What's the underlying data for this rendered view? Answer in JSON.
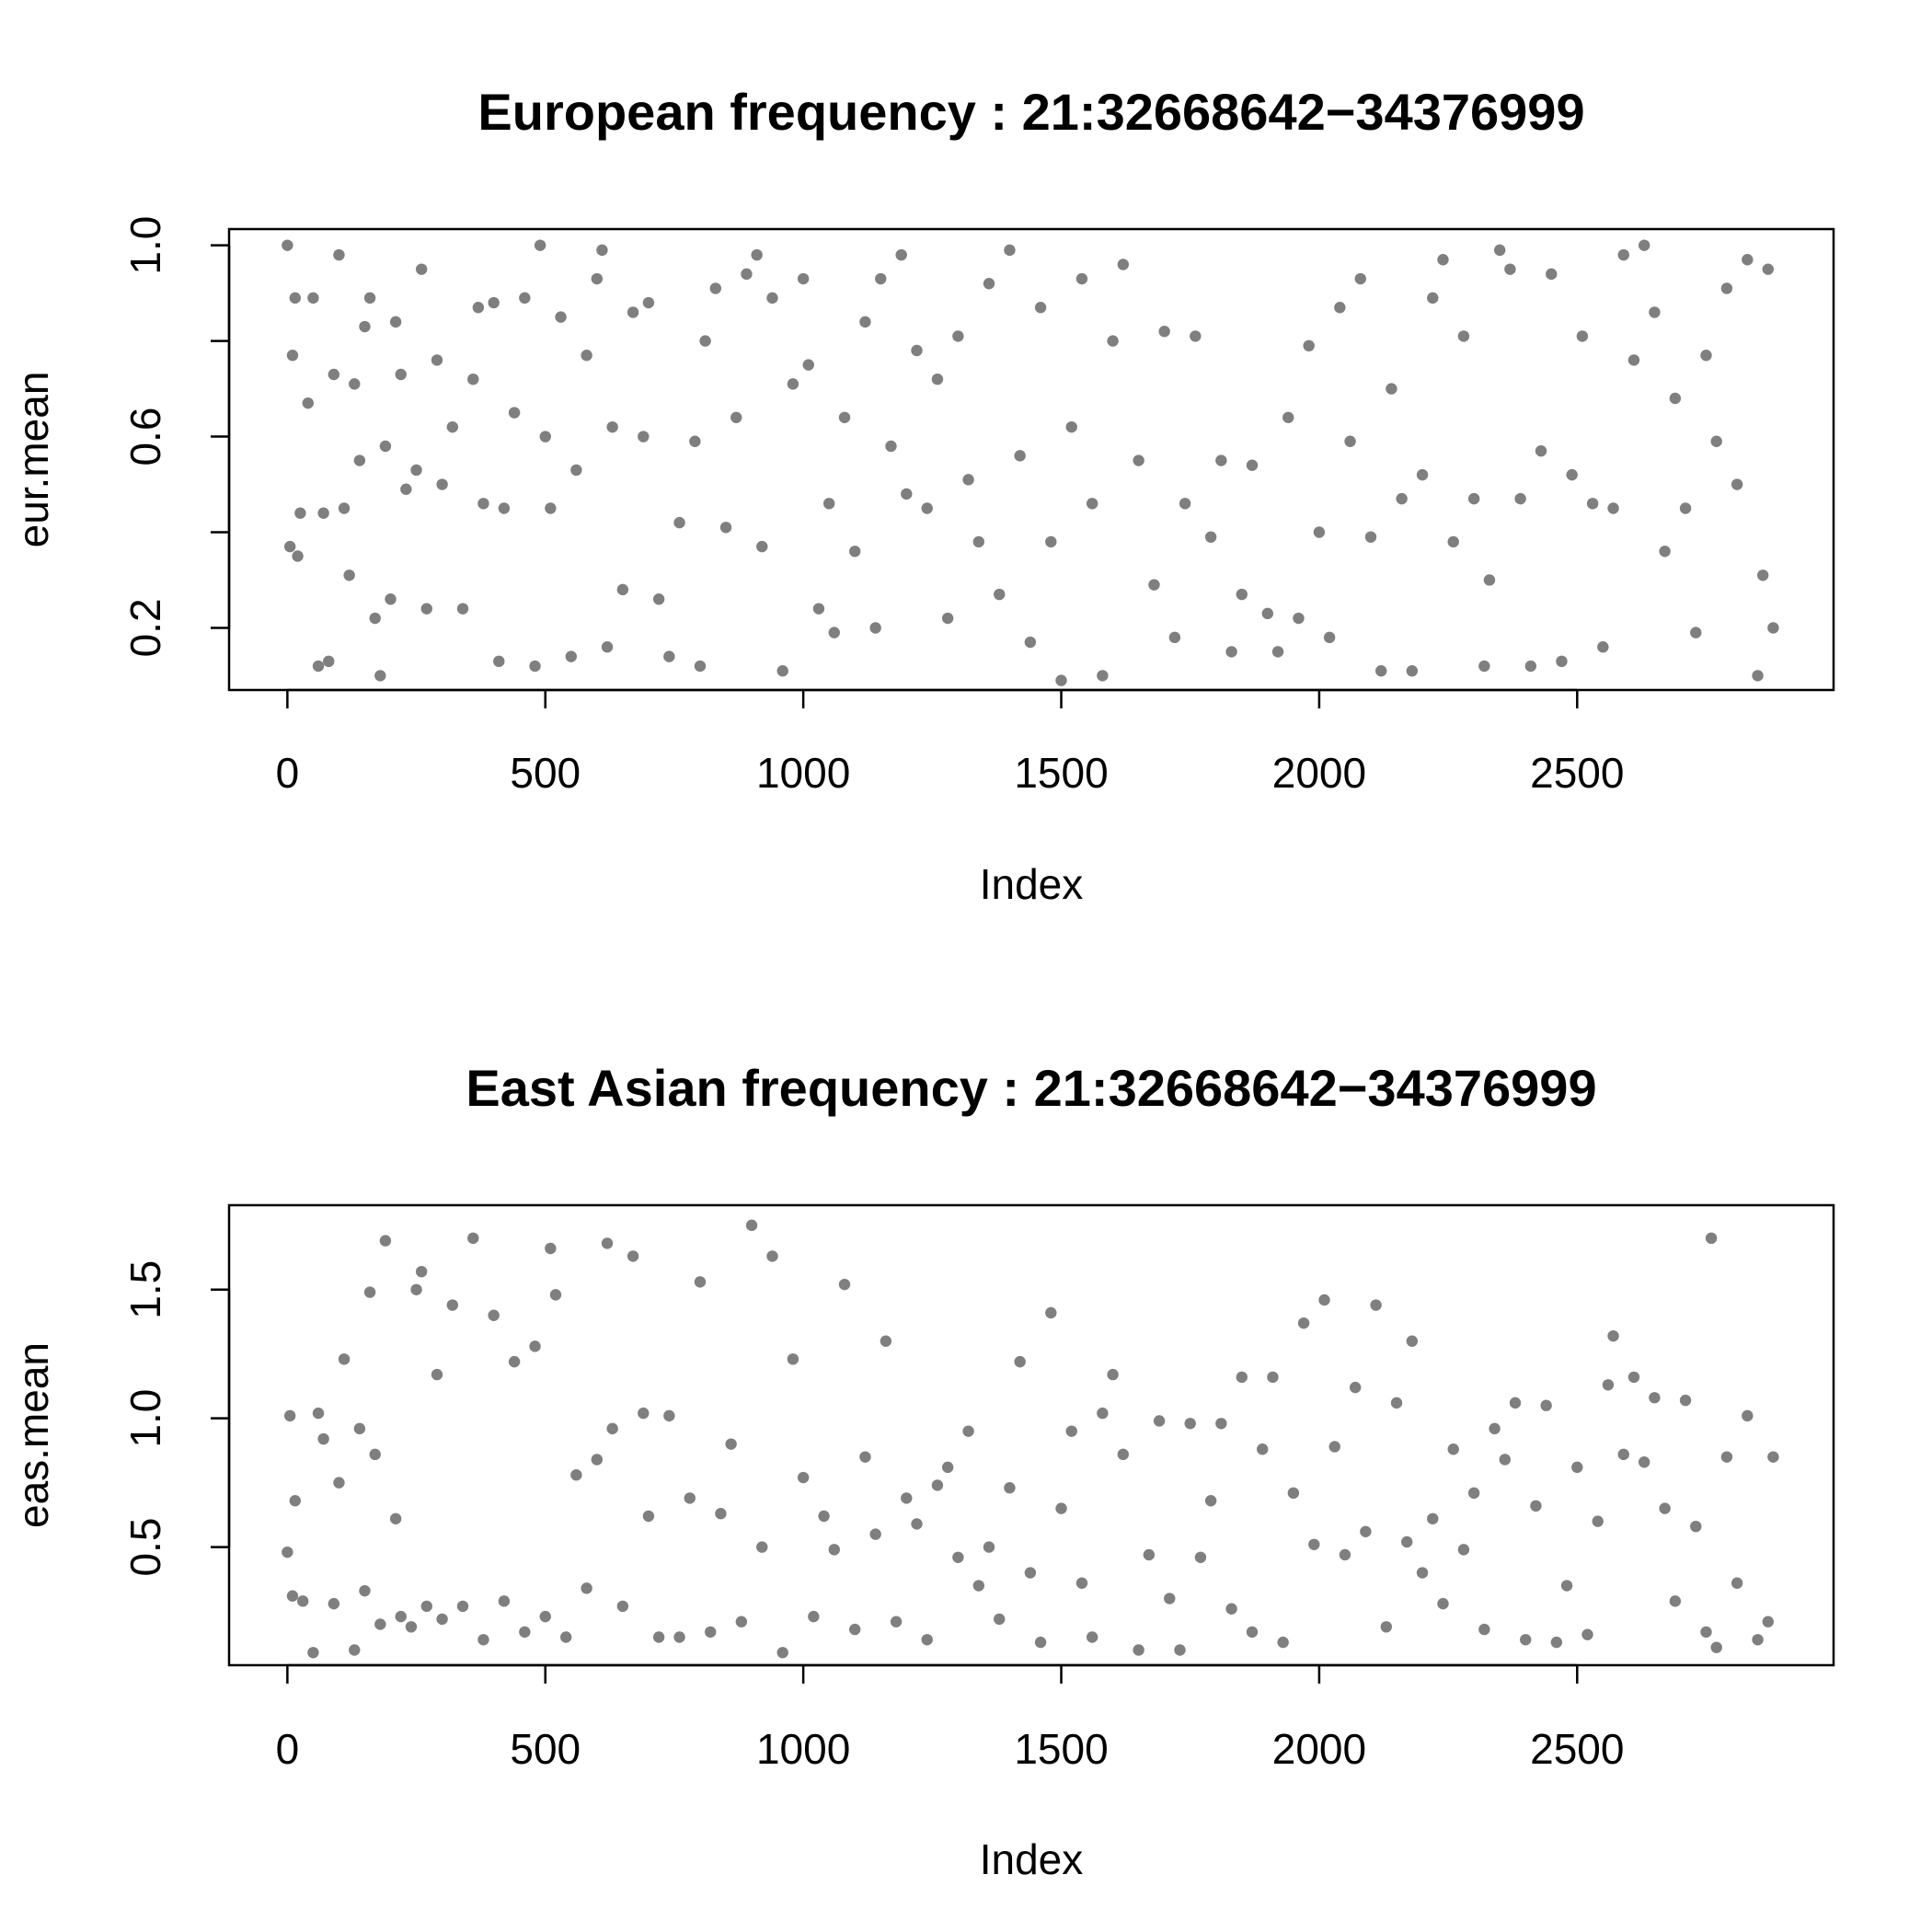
{
  "chart_data": [
    {
      "type": "scatter",
      "title": "European frequency : 21:32668642−34376999",
      "xlabel": "Index",
      "ylabel": "eur.mean",
      "color": "#7f7f7f",
      "xlim": [
        -113,
        2997
      ],
      "ylim": [
        0.07,
        1.034
      ],
      "xticks": [
        0,
        500,
        1000,
        1500,
        2000,
        2500
      ],
      "yticks": [
        0.2,
        0.6,
        {
          "value": 1,
          "label": "1.0"
        }
      ],
      "yminorticks": [
        0.4,
        0.8
      ],
      "x": [
        0,
        5,
        10,
        15,
        20,
        25,
        40,
        50,
        60,
        70,
        80,
        90,
        100,
        110,
        120,
        130,
        140,
        150,
        160,
        170,
        180,
        190,
        200,
        210,
        220,
        230,
        250,
        260,
        270,
        290,
        300,
        320,
        340,
        360,
        370,
        380,
        400,
        410,
        420,
        440,
        460,
        480,
        490,
        500,
        510,
        530,
        550,
        560,
        580,
        600,
        610,
        620,
        630,
        650,
        670,
        690,
        700,
        720,
        740,
        760,
        790,
        800,
        810,
        830,
        850,
        870,
        890,
        910,
        920,
        940,
        960,
        980,
        1000,
        1010,
        1030,
        1050,
        1060,
        1080,
        1100,
        1120,
        1140,
        1150,
        1170,
        1190,
        1200,
        1220,
        1240,
        1260,
        1280,
        1300,
        1320,
        1340,
        1360,
        1380,
        1400,
        1420,
        1440,
        1460,
        1480,
        1500,
        1520,
        1540,
        1560,
        1580,
        1600,
        1620,
        1650,
        1680,
        1700,
        1720,
        1740,
        1760,
        1790,
        1810,
        1830,
        1850,
        1870,
        1900,
        1920,
        1940,
        1960,
        1980,
        2000,
        2020,
        2040,
        2060,
        2080,
        2100,
        2120,
        2140,
        2160,
        2180,
        2200,
        2220,
        2240,
        2260,
        2280,
        2300,
        2320,
        2330,
        2350,
        2370,
        2390,
        2410,
        2430,
        2450,
        2470,
        2490,
        2510,
        2530,
        2550,
        2570,
        2590,
        2610,
        2630,
        2650,
        2670,
        2690,
        2710,
        2730,
        2750,
        2770,
        2790,
        2810,
        2830,
        2850,
        2860,
        2870,
        2880
      ],
      "values": [
        1.0,
        0.37,
        0.77,
        0.89,
        0.35,
        0.44,
        0.67,
        0.89,
        0.12,
        0.44,
        0.13,
        0.73,
        0.98,
        0.45,
        0.31,
        0.71,
        0.55,
        0.83,
        0.89,
        0.22,
        0.1,
        0.58,
        0.26,
        0.84,
        0.73,
        0.49,
        0.53,
        0.95,
        0.24,
        0.76,
        0.5,
        0.62,
        0.24,
        0.72,
        0.87,
        0.46,
        0.88,
        0.13,
        0.45,
        0.65,
        0.89,
        0.12,
        1.0,
        0.6,
        0.45,
        0.85,
        0.14,
        0.53,
        0.77,
        0.93,
        0.99,
        0.16,
        0.62,
        0.28,
        0.86,
        0.6,
        0.88,
        0.26,
        0.14,
        0.42,
        0.59,
        0.12,
        0.8,
        0.91,
        0.41,
        0.64,
        0.94,
        0.98,
        0.37,
        0.89,
        0.11,
        0.71,
        0.93,
        0.75,
        0.24,
        0.46,
        0.19,
        0.64,
        0.36,
        0.84,
        0.2,
        0.93,
        0.58,
        0.98,
        0.48,
        0.78,
        0.45,
        0.72,
        0.22,
        0.81,
        0.51,
        0.38,
        0.92,
        0.27,
        0.99,
        0.56,
        0.17,
        0.87,
        0.38,
        0.09,
        0.62,
        0.93,
        0.46,
        0.1,
        0.8,
        0.96,
        0.55,
        0.29,
        0.82,
        0.18,
        0.46,
        0.81,
        0.39,
        0.55,
        0.15,
        0.27,
        0.54,
        0.23,
        0.15,
        0.64,
        0.22,
        0.79,
        0.4,
        0.18,
        0.87,
        0.59,
        0.93,
        0.39,
        0.11,
        0.7,
        0.47,
        0.11,
        0.52,
        0.89,
        0.97,
        0.38,
        0.81,
        0.47,
        0.12,
        0.3,
        0.99,
        0.95,
        0.47,
        0.12,
        0.57,
        0.94,
        0.13,
        0.52,
        0.81,
        0.46,
        0.16,
        0.45,
        0.98,
        0.76,
        1.0,
        0.86,
        0.36,
        0.68,
        0.45,
        0.19,
        0.77,
        0.59,
        0.91,
        0.5,
        0.97,
        0.1,
        0.31,
        0.95,
        0.2
      ]
    },
    {
      "type": "scatter",
      "title": "East Asian frequency : 21:32668642−34376999",
      "xlabel": "Index",
      "ylabel": "eas.mean",
      "color": "#7f7f7f",
      "xlim": [
        -113,
        2997
      ],
      "ylim": [
        0.041,
        1.828
      ],
      "xticks": [
        0,
        500,
        1000,
        1500,
        2000,
        2500
      ],
      "yticks": [
        0.5,
        {
          "value": 1,
          "label": "1.0"
        },
        1.5
      ],
      "x": [
        0,
        5,
        10,
        15,
        30,
        50,
        60,
        70,
        90,
        100,
        110,
        130,
        140,
        150,
        160,
        170,
        180,
        190,
        210,
        220,
        240,
        250,
        260,
        270,
        290,
        300,
        320,
        340,
        360,
        380,
        400,
        420,
        440,
        460,
        480,
        500,
        510,
        520,
        540,
        560,
        580,
        600,
        620,
        630,
        650,
        670,
        690,
        700,
        720,
        740,
        760,
        780,
        800,
        820,
        840,
        860,
        880,
        900,
        920,
        940,
        960,
        980,
        1000,
        1020,
        1040,
        1060,
        1080,
        1100,
        1120,
        1140,
        1160,
        1180,
        1200,
        1220,
        1240,
        1260,
        1280,
        1300,
        1320,
        1340,
        1360,
        1380,
        1400,
        1420,
        1440,
        1460,
        1480,
        1500,
        1520,
        1540,
        1560,
        1580,
        1600,
        1620,
        1650,
        1670,
        1690,
        1710,
        1730,
        1750,
        1770,
        1790,
        1810,
        1830,
        1850,
        1870,
        1890,
        1910,
        1930,
        1950,
        1970,
        1990,
        2010,
        2030,
        2050,
        2070,
        2090,
        2110,
        2130,
        2150,
        2170,
        2180,
        2200,
        2220,
        2240,
        2260,
        2280,
        2300,
        2320,
        2340,
        2360,
        2380,
        2400,
        2420,
        2440,
        2460,
        2480,
        2500,
        2520,
        2540,
        2560,
        2570,
        2590,
        2610,
        2630,
        2650,
        2670,
        2690,
        2710,
        2730,
        2750,
        2760,
        2770,
        2790,
        2810,
        2830,
        2850,
        2870,
        2880
      ],
      "values": [
        0.48,
        1.01,
        0.31,
        0.68,
        0.29,
        0.09,
        1.02,
        0.92,
        0.28,
        0.75,
        1.23,
        0.1,
        0.96,
        0.33,
        1.49,
        0.86,
        0.2,
        1.69,
        0.61,
        0.23,
        0.19,
        1.5,
        1.57,
        0.27,
        1.17,
        0.22,
        1.44,
        0.27,
        1.7,
        0.14,
        1.4,
        0.29,
        1.22,
        0.17,
        1.28,
        0.23,
        1.66,
        1.48,
        0.15,
        0.78,
        0.34,
        0.84,
        1.68,
        0.96,
        0.27,
        1.63,
        1.02,
        0.62,
        0.15,
        1.01,
        0.15,
        0.69,
        1.53,
        0.17,
        0.63,
        0.9,
        0.21,
        1.75,
        0.5,
        1.63,
        0.09,
        1.23,
        0.77,
        0.23,
        0.62,
        0.49,
        1.52,
        0.18,
        0.85,
        0.55,
        1.3,
        0.21,
        0.69,
        0.59,
        0.14,
        0.74,
        0.81,
        0.46,
        0.95,
        0.35,
        0.5,
        0.22,
        0.73,
        1.22,
        0.4,
        0.13,
        1.41,
        0.65,
        0.95,
        0.36,
        0.15,
        1.02,
        1.17,
        0.86,
        0.1,
        0.47,
        0.99,
        0.3,
        0.1,
        0.98,
        0.46,
        0.68,
        0.98,
        0.26,
        1.16,
        0.17,
        0.88,
        1.16,
        0.13,
        0.71,
        1.37,
        0.51,
        1.46,
        0.89,
        0.47,
        1.12,
        0.56,
        1.44,
        0.19,
        1.06,
        0.52,
        1.3,
        0.4,
        0.61,
        0.28,
        0.88,
        0.49,
        0.71,
        0.18,
        0.96,
        0.84,
        1.06,
        0.14,
        0.66,
        1.05,
        0.13,
        0.35,
        0.81,
        0.16,
        0.6,
        1.13,
        1.32,
        0.86,
        1.16,
        0.83,
        1.08,
        0.65,
        0.29,
        1.07,
        0.58,
        0.17,
        1.7,
        0.11,
        0.85,
        0.36,
        1.01,
        0.14,
        0.21,
        0.85
      ]
    }
  ]
}
